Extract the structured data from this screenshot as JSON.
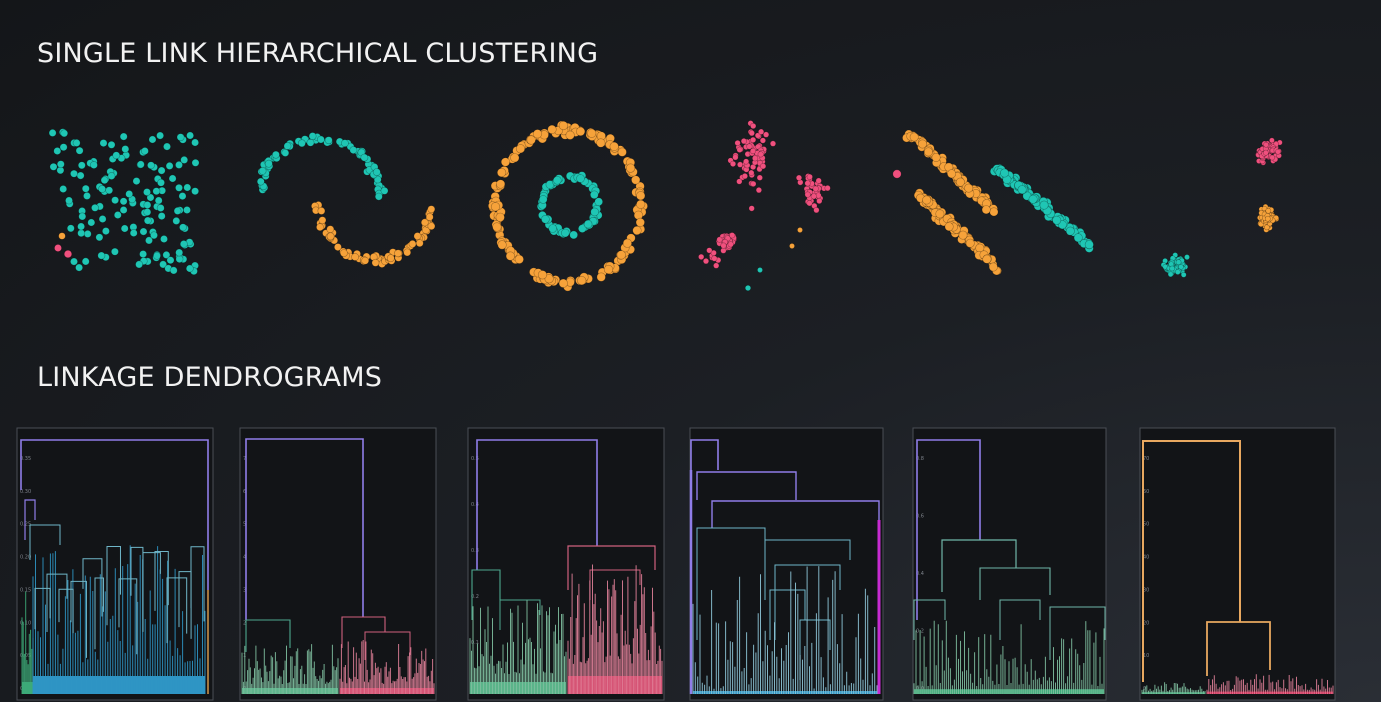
{
  "title": "SINGLE LINK HIERARCHICAL CLUSTERING",
  "subtitle": "LINKAGE DENDROGRAMS",
  "colors": {
    "teal": "#1fc6b4",
    "orange": "#f6a23a",
    "pink": "#f0507e",
    "purple": "#8f7de8",
    "green": "#3daa78",
    "blue": "#2f95c4",
    "crimson": "#c9244e",
    "magenta": "#c62bd1",
    "tan": "#e8a860",
    "linkGreen": "#4da88f",
    "linkPink": "#d0607e"
  },
  "datasets": [
    {
      "name": "uniform-square",
      "clusters": [
        "teal",
        "pink"
      ]
    },
    {
      "name": "two-moons",
      "clusters": [
        "teal",
        "orange"
      ]
    },
    {
      "name": "concentric-circles",
      "clusters": [
        "teal",
        "orange"
      ]
    },
    {
      "name": "varied-density-blobs",
      "clusters": [
        "pink",
        "teal",
        "orange"
      ]
    },
    {
      "name": "anisotropic-stripes",
      "clusters": [
        "orange",
        "teal",
        "pink"
      ]
    },
    {
      "name": "three-blobs",
      "clusters": [
        "pink",
        "orange",
        "teal"
      ]
    }
  ],
  "dendrograms": [
    {
      "name": "uniform-square",
      "yticks": [
        "0.35",
        "0.30",
        "0.25",
        "0.20",
        "0.15",
        "0.10",
        "0.05",
        "0.00"
      ]
    },
    {
      "name": "two-moons",
      "yticks": [
        "7",
        "6",
        "5",
        "4",
        "3",
        "2",
        "1",
        "0"
      ]
    },
    {
      "name": "concentric-circles",
      "yticks": [
        "0.5",
        "0.4",
        "0.3",
        "0.2",
        "0.1",
        "0.0"
      ]
    },
    {
      "name": "varied-density-blobs",
      "yticks": []
    },
    {
      "name": "anisotropic-stripes",
      "yticks": [
        "0.8",
        "0.6",
        "0.4",
        "0.2",
        "0.0"
      ]
    },
    {
      "name": "three-blobs",
      "yticks": [
        "70",
        "60",
        "50",
        "40",
        "30",
        "20",
        "10",
        "0"
      ]
    }
  ]
}
